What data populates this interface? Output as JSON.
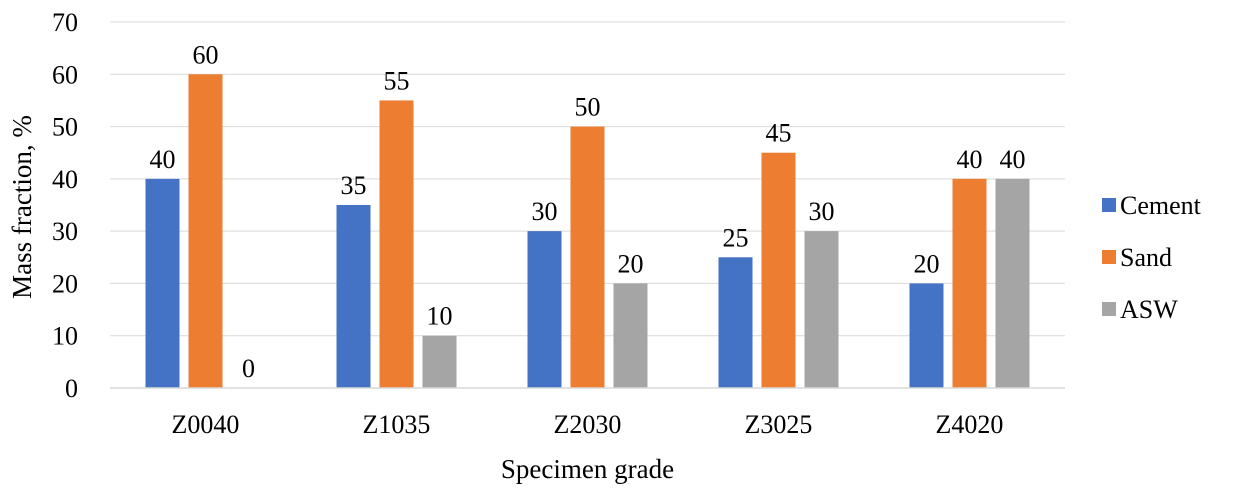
{
  "chart_data": {
    "type": "bar",
    "categories": [
      "Z0040",
      "Z1035",
      "Z2030",
      "Z3025",
      "Z4020"
    ],
    "series": [
      {
        "name": "Cement",
        "values": [
          40,
          35,
          30,
          25,
          20
        ],
        "color": "#4472C4"
      },
      {
        "name": "Sand",
        "values": [
          60,
          55,
          50,
          45,
          40
        ],
        "color": "#ED7D31"
      },
      {
        "name": "ASW",
        "values": [
          0,
          10,
          20,
          30,
          40
        ],
        "color": "#A5A5A5"
      }
    ],
    "xlabel": "Specimen grade",
    "ylabel": "Mass fraction, %",
    "ylim": [
      0,
      70
    ],
    "yticks": [
      0,
      10,
      20,
      30,
      40,
      50,
      60,
      70
    ],
    "grid": true,
    "gridline_color": "#D9D9D9",
    "legend_position": "right",
    "data_labels": true
  }
}
